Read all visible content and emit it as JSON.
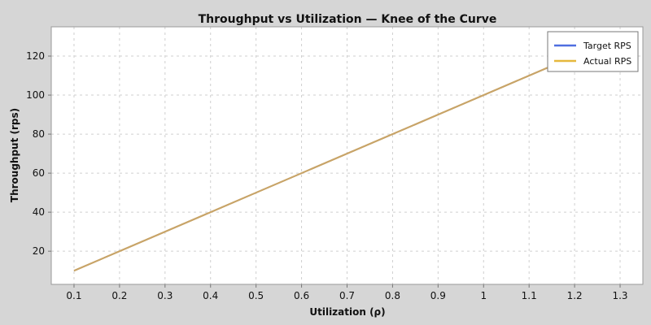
{
  "chart_data": {
    "type": "line",
    "title": "Throughput vs Utilization — Knee of the Curve",
    "xlabel": "Utilization (ρ)",
    "ylabel": "Throughput (rps)",
    "xlim": [
      0.05,
      1.35
    ],
    "ylim": [
      3,
      135
    ],
    "x_ticks": [
      0.1,
      0.2,
      0.3,
      0.4,
      0.5,
      0.6,
      0.7,
      0.8,
      0.9,
      1,
      1.1,
      1.2,
      1.3
    ],
    "x_tick_labels": [
      "0.1",
      "0.2",
      "0.3",
      "0.4",
      "0.5",
      "0.6",
      "0.7",
      "0.8",
      "0.9",
      "1",
      "1.1",
      "1.2",
      "1.3"
    ],
    "y_ticks": [
      20,
      40,
      60,
      80,
      100,
      120
    ],
    "y_tick_labels": [
      "20",
      "40",
      "60",
      "80",
      "100",
      "120"
    ],
    "grid": true,
    "legend_position": "top-right",
    "x": [
      0.1,
      0.2,
      0.3,
      0.4,
      0.5,
      0.6,
      0.7,
      0.8,
      0.9,
      1.0,
      1.1,
      1.2,
      1.3
    ],
    "series": [
      {
        "name": "Target RPS",
        "color": "#4f6fe0",
        "values": [
          10,
          20,
          30,
          40,
          50,
          60,
          70,
          80,
          90,
          100,
          110,
          120,
          130
        ]
      },
      {
        "name": "Actual RPS",
        "color": "#e6b83c",
        "values": [
          10,
          20,
          30,
          40,
          50,
          60,
          70,
          80,
          90,
          100,
          110,
          120,
          130
        ]
      }
    ],
    "overlap_color": "#c8a468"
  }
}
